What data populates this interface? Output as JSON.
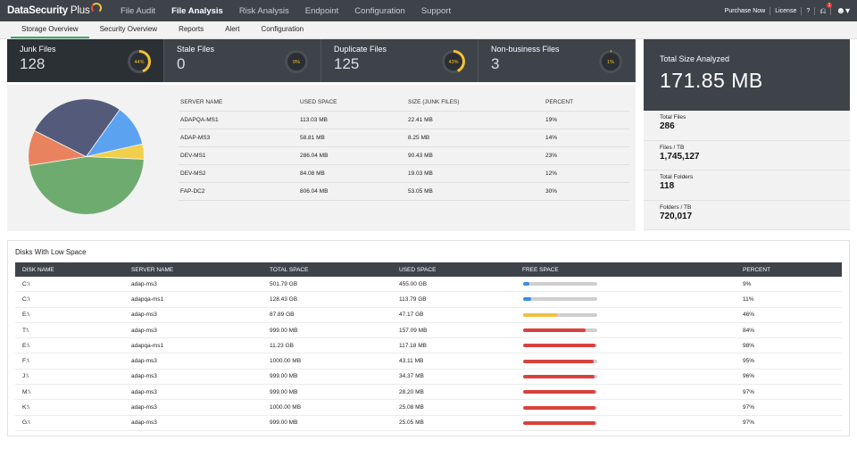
{
  "app": {
    "brand": "DataSecurity",
    "brand_suffix": "Plus"
  },
  "nav": {
    "items": [
      {
        "label": "File Audit",
        "active": false
      },
      {
        "label": "File Analysis",
        "active": true
      },
      {
        "label": "Risk Analysis",
        "active": false
      },
      {
        "label": "Endpoint",
        "active": false
      },
      {
        "label": "Configuration",
        "active": false
      },
      {
        "label": "Support",
        "active": false
      }
    ],
    "purchase": "Purchase Now",
    "license": "License",
    "help": "?",
    "notification_count": "1"
  },
  "subnav": {
    "tabs": [
      {
        "label": "Storage Overview",
        "active": true
      },
      {
        "label": "Security Overview",
        "active": false
      },
      {
        "label": "Reports",
        "active": false
      },
      {
        "label": "Alert",
        "active": false
      },
      {
        "label": "Configuration",
        "active": false
      }
    ]
  },
  "summary": [
    {
      "title": "Junk Files",
      "value": "128",
      "percent_label": "44%",
      "percent": 44
    },
    {
      "title": "Stale Files",
      "value": "0",
      "percent_label": "0%",
      "percent": 0
    },
    {
      "title": "Duplicate Files",
      "value": "125",
      "percent_label": "43%",
      "percent": 43
    },
    {
      "title": "Non-business Files",
      "value": "3",
      "percent_label": "1%",
      "percent": 1
    }
  ],
  "total": {
    "title": "Total Size Analyzed",
    "value": "171.85 MB"
  },
  "stats": [
    {
      "label": "Total Files",
      "value": "286"
    },
    {
      "label": "Files / TB",
      "value": "1,745,127"
    },
    {
      "label": "Total Folders",
      "value": "118"
    },
    {
      "label": "Folders / TB",
      "value": "720,017"
    }
  ],
  "server_table": {
    "headers": [
      "SERVER NAME",
      "USED SPACE",
      "SIZE (JUNK FILES)",
      "PERCENT"
    ],
    "rows": [
      [
        "ADAPQA-MS1",
        "113.03 MB",
        "22.41 MB",
        "19%"
      ],
      [
        "ADAP-MS3",
        "58.81 MB",
        "8.25 MB",
        "14%"
      ],
      [
        "DEV-MS1",
        "286.04 MB",
        "90.43 MB",
        "23%"
      ],
      [
        "DEV-MS2",
        "84.08 MB",
        "19.03 MB",
        "12%"
      ],
      [
        "FAP-DC2",
        "806.04 MB",
        "53.05 MB",
        "30%"
      ]
    ]
  },
  "pie": {
    "slices": [
      {
        "label": "ADAPQA-MS1",
        "value": 22.41,
        "color": "#5ba3f0"
      },
      {
        "label": "ADAP-MS3",
        "value": 8.25,
        "color": "#f2cf4a"
      },
      {
        "label": "DEV-MS1",
        "value": 90.43,
        "color": "#6eab6f"
      },
      {
        "label": "DEV-MS2",
        "value": 19.03,
        "color": "#e8825f"
      },
      {
        "label": "FAP-DC2",
        "value": 53.05,
        "color": "#535a7a"
      }
    ]
  },
  "disks": {
    "title": "Disks With Low Space",
    "headers": [
      "DISK NAME",
      "SERVER NAME",
      "TOTAL SPACE",
      "USED SPACE",
      "FREE SPACE",
      "PERCENT"
    ],
    "rows": [
      {
        "disk": "C:\\",
        "server": "adap-ms3",
        "total": "501.79 GB",
        "used": "455.00 GB",
        "percent": "9%",
        "fill": 9,
        "color": "#3a8de0"
      },
      {
        "disk": "C:\\",
        "server": "adapqa-ms1",
        "total": "128.43 GB",
        "used": "113.79 GB",
        "percent": "11%",
        "fill": 11,
        "color": "#3a8de0"
      },
      {
        "disk": "E:\\",
        "server": "adap-ms3",
        "total": "87.89 GB",
        "used": "47.17 GB",
        "percent": "46%",
        "fill": 46,
        "color": "#f0c040"
      },
      {
        "disk": "T:\\",
        "server": "adap-ms3",
        "total": "999.00 MB",
        "used": "157.09 MB",
        "percent": "84%",
        "fill": 84,
        "color": "#d9413c"
      },
      {
        "disk": "E:\\",
        "server": "adapqa-ms1",
        "total": "11.23 GB",
        "used": "117.18 MB",
        "percent": "98%",
        "fill": 98,
        "color": "#d9413c"
      },
      {
        "disk": "F:\\",
        "server": "adap-ms3",
        "total": "1000.00 MB",
        "used": "43.11 MB",
        "percent": "95%",
        "fill": 95,
        "color": "#d9413c"
      },
      {
        "disk": "J:\\",
        "server": "adap-ms3",
        "total": "999.00 MB",
        "used": "34.37 MB",
        "percent": "96%",
        "fill": 96,
        "color": "#d9413c"
      },
      {
        "disk": "M:\\",
        "server": "adap-ms3",
        "total": "999.00 MB",
        "used": "28.20 MB",
        "percent": "97%",
        "fill": 97,
        "color": "#d9413c"
      },
      {
        "disk": "K:\\",
        "server": "adap-ms3",
        "total": "1000.00 MB",
        "used": "25.08 MB",
        "percent": "97%",
        "fill": 97,
        "color": "#d9413c"
      },
      {
        "disk": "G:\\",
        "server": "adap-ms3",
        "total": "999.00 MB",
        "used": "25.05 MB",
        "percent": "97%",
        "fill": 97,
        "color": "#d9413c"
      }
    ]
  }
}
